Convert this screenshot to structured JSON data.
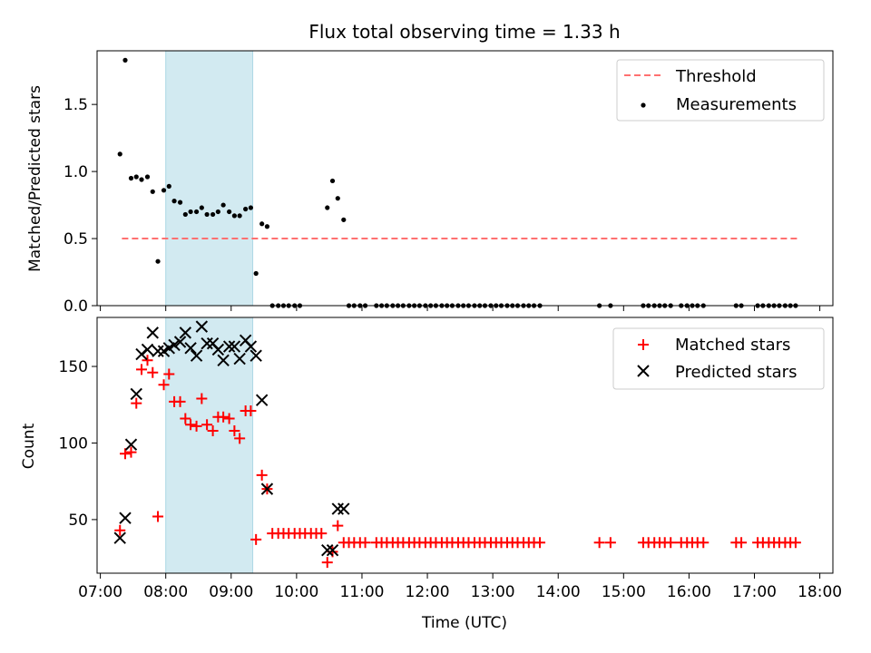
{
  "title": "Flux total observing time = 1.33 h",
  "colors": {
    "measurement": "#000000",
    "threshold": "#ff7070",
    "matched": "#ff0000",
    "predicted": "#000000",
    "shade": "#add8e6"
  },
  "chart_data": [
    {
      "type": "scatter",
      "panel": "top",
      "ylabel": "Matched/Predicted stars",
      "xlim": [
        6.95,
        18.2
      ],
      "ylim": [
        0,
        1.9
      ],
      "yticks": [
        0.0,
        0.5,
        1.0,
        1.5
      ],
      "shaded_span": [
        8.0,
        9.33
      ],
      "threshold": {
        "name": "Threshold",
        "value": 0.5,
        "x_range": [
          7.33,
          17.67
        ]
      },
      "legend": [
        "Threshold",
        "Measurements"
      ],
      "legend_position": "top-right",
      "series": [
        {
          "name": "Measurements",
          "x": [
            7.3,
            7.38,
            7.47,
            7.55,
            7.63,
            7.72,
            7.8,
            7.88,
            7.97,
            8.05,
            8.13,
            8.22,
            8.3,
            8.38,
            8.47,
            8.55,
            8.63,
            8.72,
            8.8,
            8.88,
            8.97,
            9.05,
            9.13,
            9.22,
            9.3,
            9.38,
            9.47,
            9.55,
            9.63,
            9.72,
            9.8,
            9.88,
            9.97,
            10.05,
            10.47,
            10.55,
            10.63,
            10.72,
            10.8,
            10.88,
            10.97,
            11.05,
            11.22,
            11.3,
            11.38,
            11.47,
            11.55,
            11.63,
            11.72,
            11.8,
            11.88,
            11.97,
            12.05,
            12.13,
            12.22,
            12.3,
            12.38,
            12.47,
            12.55,
            12.63,
            12.72,
            12.8,
            12.88,
            12.97,
            13.05,
            13.13,
            13.22,
            13.3,
            13.38,
            13.47,
            13.55,
            13.63,
            13.72,
            14.63,
            14.8,
            15.3,
            15.38,
            15.47,
            15.55,
            15.63,
            15.72,
            15.88,
            15.97,
            16.05,
            16.13,
            16.22,
            16.72,
            16.8,
            17.05,
            17.13,
            17.22,
            17.3,
            17.38,
            17.47,
            17.55,
            17.63
          ],
          "y": [
            1.13,
            1.83,
            0.95,
            0.96,
            0.94,
            0.96,
            0.85,
            0.33,
            0.86,
            0.89,
            0.78,
            0.77,
            0.68,
            0.7,
            0.7,
            0.73,
            0.68,
            0.68,
            0.7,
            0.75,
            0.7,
            0.67,
            0.67,
            0.72,
            0.73,
            0.24,
            0.61,
            0.59,
            0.0,
            0.0,
            0.0,
            0.0,
            0.0,
            0.0,
            0.73,
            0.93,
            0.8,
            0.64,
            0.0,
            0.0,
            0.0,
            0.0,
            0.0,
            0.0,
            0.0,
            0.0,
            0.0,
            0.0,
            0.0,
            0.0,
            0.0,
            0.0,
            0.0,
            0.0,
            0.0,
            0.0,
            0.0,
            0.0,
            0.0,
            0.0,
            0.0,
            0.0,
            0.0,
            0.0,
            0.0,
            0.0,
            0.0,
            0.0,
            0.0,
            0.0,
            0.0,
            0.0,
            0.0,
            0.0,
            0.0,
            0.0,
            0.0,
            0.0,
            0.0,
            0.0,
            0.0,
            0.0,
            0.0,
            0.0,
            0.0,
            0.0,
            0.0,
            0.0,
            0.0,
            0.0,
            0.0,
            0.0,
            0.0,
            0.0,
            0.0,
            0.0
          ]
        }
      ]
    },
    {
      "type": "scatter",
      "panel": "bottom",
      "ylabel": "Count",
      "xlabel": "Time (UTC)",
      "xlim": [
        6.95,
        18.2
      ],
      "ylim": [
        15,
        182
      ],
      "yticks": [
        50,
        100,
        150
      ],
      "xticks": [
        7,
        8,
        9,
        10,
        11,
        12,
        13,
        14,
        15,
        16,
        17,
        18
      ],
      "xtick_labels": [
        "07:00",
        "08:00",
        "09:00",
        "10:00",
        "11:00",
        "12:00",
        "13:00",
        "14:00",
        "15:00",
        "16:00",
        "17:00",
        "18:00"
      ],
      "shaded_span": [
        8.0,
        9.33
      ],
      "legend": [
        "Matched stars",
        "Predicted stars"
      ],
      "legend_position": "top-right",
      "series": [
        {
          "name": "Matched stars",
          "marker": "+",
          "x": [
            7.3,
            7.38,
            7.47,
            7.55,
            7.63,
            7.72,
            7.8,
            7.88,
            7.97,
            8.05,
            8.13,
            8.22,
            8.3,
            8.38,
            8.47,
            8.55,
            8.63,
            8.72,
            8.8,
            8.88,
            8.97,
            9.05,
            9.13,
            9.22,
            9.3,
            9.38,
            9.47,
            9.55,
            9.63,
            9.72,
            9.8,
            9.88,
            9.97,
            10.05,
            10.13,
            10.22,
            10.3,
            10.38,
            10.47,
            10.55,
            10.63,
            10.72,
            10.8,
            10.88,
            10.97,
            11.05,
            11.22,
            11.3,
            11.38,
            11.47,
            11.55,
            11.63,
            11.72,
            11.8,
            11.88,
            11.97,
            12.05,
            12.13,
            12.22,
            12.3,
            12.38,
            12.47,
            12.55,
            12.63,
            12.72,
            12.8,
            12.88,
            12.97,
            13.05,
            13.13,
            13.22,
            13.3,
            13.38,
            13.47,
            13.55,
            13.63,
            13.72,
            14.63,
            14.8,
            15.3,
            15.38,
            15.47,
            15.55,
            15.63,
            15.72,
            15.88,
            15.97,
            16.05,
            16.13,
            16.22,
            16.72,
            16.8,
            17.05,
            17.13,
            17.22,
            17.3,
            17.38,
            17.47,
            17.55,
            17.63
          ],
          "y": [
            43,
            93,
            94,
            126,
            148,
            154,
            146,
            52,
            138,
            145,
            127,
            127,
            116,
            112,
            111,
            129,
            112,
            108,
            117,
            117,
            116,
            108,
            103,
            121,
            121,
            37,
            79,
            70,
            41,
            41,
            41,
            41,
            41,
            41,
            41,
            41,
            41,
            41,
            22,
            29,
            46,
            35,
            35,
            35,
            35,
            35,
            35,
            35,
            35,
            35,
            35,
            35,
            35,
            35,
            35,
            35,
            35,
            35,
            35,
            35,
            35,
            35,
            35,
            35,
            35,
            35,
            35,
            35,
            35,
            35,
            35,
            35,
            35,
            35,
            35,
            35,
            35,
            35,
            35,
            35,
            35,
            35,
            35,
            35,
            35,
            35,
            35,
            35,
            35,
            35,
            35,
            35,
            35,
            35,
            35,
            35,
            35,
            35,
            35,
            35
          ]
        },
        {
          "name": "Predicted stars",
          "marker": "x",
          "x": [
            7.3,
            7.38,
            7.47,
            7.55,
            7.63,
            7.72,
            7.8,
            7.88,
            7.97,
            8.05,
            8.13,
            8.22,
            8.3,
            8.38,
            8.47,
            8.55,
            8.63,
            8.72,
            8.8,
            8.88,
            8.97,
            9.05,
            9.13,
            9.22,
            9.3,
            9.38,
            9.47,
            9.55,
            10.47,
            10.55,
            10.63,
            10.72
          ],
          "y": [
            38,
            51,
            99,
            132,
            158,
            161,
            172,
            160,
            160,
            162,
            164,
            166,
            172,
            162,
            157,
            176,
            165,
            165,
            161,
            154,
            163,
            163,
            155,
            167,
            163,
            157,
            128,
            70,
            30,
            30,
            57,
            57
          ]
        }
      ]
    }
  ]
}
